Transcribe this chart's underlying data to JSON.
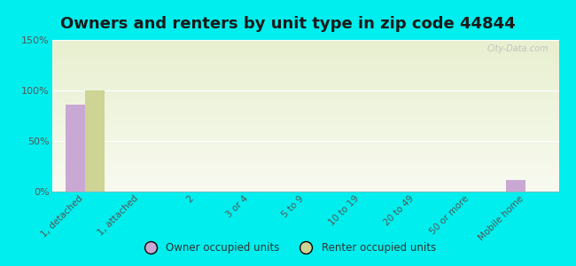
{
  "title": "Owners and renters by unit type in zip code 44844",
  "categories": [
    "1, detached",
    "1, attached",
    "2",
    "3 or 4",
    "5 to 9",
    "10 to 19",
    "20 to 49",
    "50 or more",
    "Mobile home"
  ],
  "owner_values": [
    86,
    0,
    0,
    0,
    0,
    0,
    0,
    0,
    11
  ],
  "renter_values": [
    100,
    0,
    0,
    0,
    0,
    0,
    0,
    0,
    0
  ],
  "owner_color": "#c9a8d4",
  "renter_color": "#cdd494",
  "background_color": "#00eeee",
  "ylim": [
    0,
    150
  ],
  "yticks": [
    0,
    50,
    100,
    150
  ],
  "ytick_labels": [
    "0%",
    "50%",
    "100%",
    "150%"
  ],
  "watermark": "City-Data.com",
  "legend_owner": "Owner occupied units",
  "legend_renter": "Renter occupied units",
  "title_fontsize": 13,
  "bar_width": 0.35,
  "plot_grad_top": "#e8f0d0",
  "plot_grad_bottom": "#f8faf0"
}
